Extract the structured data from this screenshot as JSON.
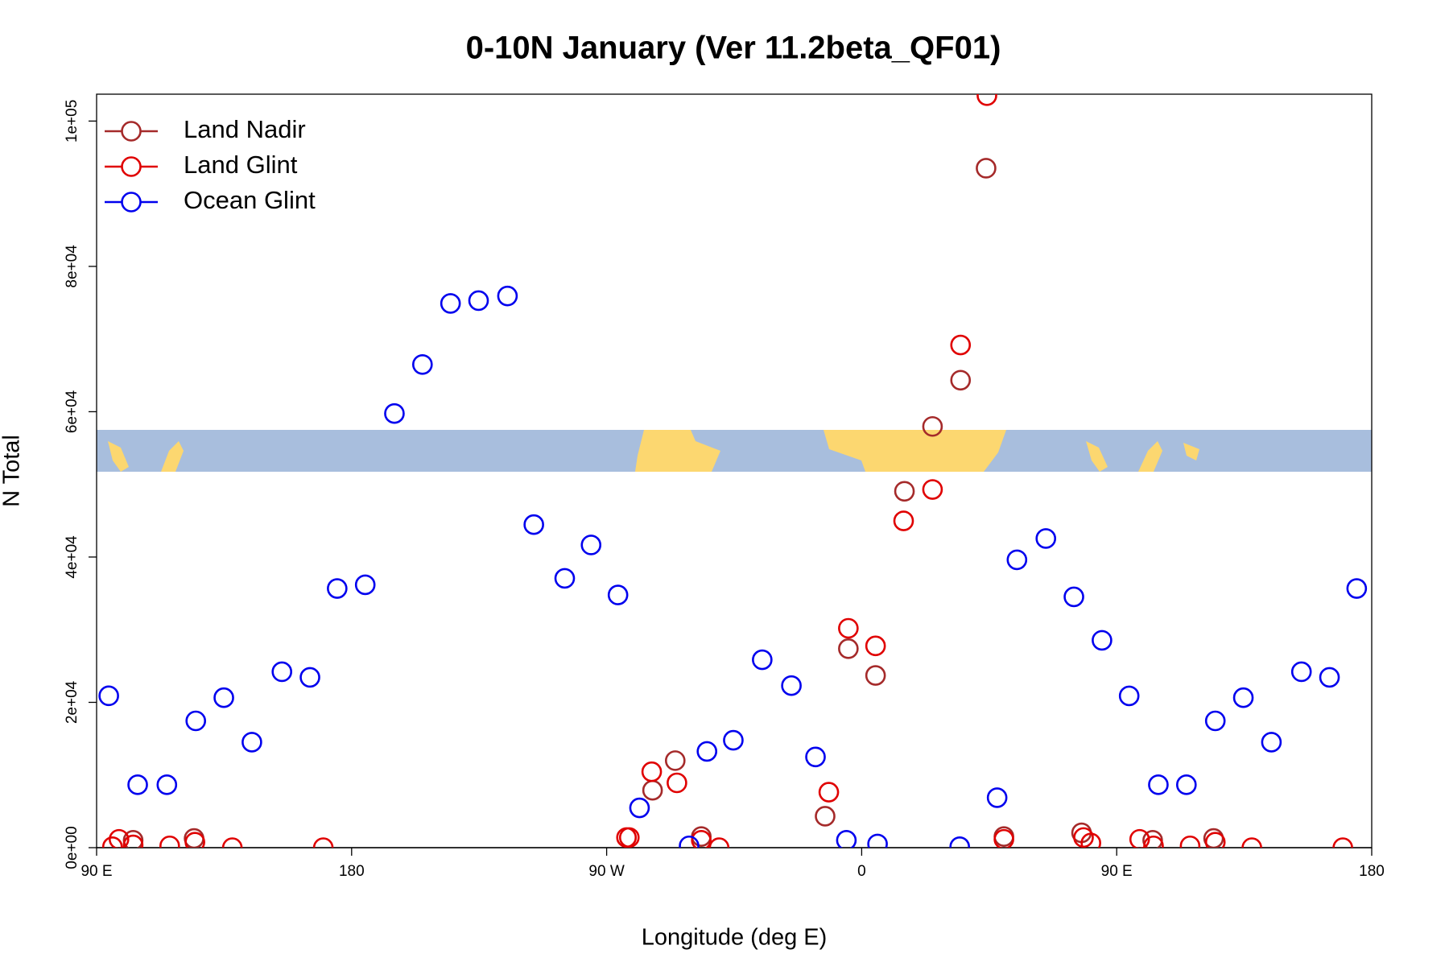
{
  "chart_data": {
    "type": "scatter",
    "title": "0-10N January (Ver 11.2beta_QF01)",
    "x_label": "Longitude (deg E)",
    "y_label": "N Total",
    "xlim": [
      90,
      540
    ],
    "ylim": [
      0,
      103700
    ],
    "xticks": [
      {
        "value": 90,
        "label": "90 E"
      },
      180,
      {
        "value": 270,
        "label": "90 W"
      },
      {
        "value": 360,
        "label": "0"
      },
      {
        "value": 450,
        "label": "90 E"
      },
      {
        "value": 540,
        "label": "180"
      }
    ],
    "yticks": [
      {
        "value": 0,
        "label": "0e+00"
      },
      {
        "value": 20000,
        "label": "2e+04"
      },
      {
        "value": 40000,
        "label": "4e+04"
      },
      {
        "value": 60000,
        "label": "6e+04"
      },
      {
        "value": 80000,
        "label": "8e+04"
      },
      {
        "value": 100000,
        "label": "1e+05"
      }
    ],
    "legend": "top-left",
    "series": [
      {
        "name": "Land Nadir",
        "color": "#a52a2a",
        "x": [
          102.9,
          124.4,
          303.4,
          286.2,
          294.2,
          347.1,
          355.3,
          364.9,
          375.1,
          385.0,
          394.9,
          403.9,
          410.2,
          437.6,
          462.7,
          484.2
        ],
        "values": [
          1020,
          1270,
          1530,
          7900,
          11980,
          4330,
          27390,
          23700,
          49050,
          57970,
          64340,
          93510,
          1530,
          2040,
          1020,
          1270
        ]
      },
      {
        "name": "Land Glint",
        "color": "#e00000",
        "x": [
          95.6,
          97.9,
          102.9,
          115.8,
          124.7,
          137.9,
          170.0,
          277.0,
          278.0,
          285.9,
          294.8,
          303.4,
          309.7,
          348.4,
          355.3,
          364.9,
          374.8,
          385.0,
          394.9,
          404.2,
          410.2,
          438.3,
          440.9,
          458.1,
          463.0,
          475.9,
          484.8,
          497.7,
          529.8
        ],
        "values": [
          130,
          1150,
          380,
          250,
          760,
          0,
          0,
          1400,
          1400,
          10450,
          8920,
          1020,
          0,
          7640,
          30190,
          27770,
          44970,
          49300,
          69180,
          103500,
          1150,
          1400,
          640,
          1150,
          250,
          250,
          760,
          0,
          0
        ]
      },
      {
        "name": "Ocean Glint",
        "color": "#0000ee",
        "x": [
          94.3,
          104.5,
          114.8,
          125.0,
          134.9,
          144.8,
          155.4,
          165.3,
          174.9,
          184.8,
          195.1,
          205.0,
          214.9,
          224.8,
          235.0,
          244.3,
          255.2,
          264.5,
          274.0,
          281.6,
          299.1,
          305.4,
          314.7,
          324.9,
          335.2,
          343.7,
          354.6,
          365.6,
          394.6,
          407.8,
          414.8,
          425.0,
          434.9,
          444.8,
          454.4,
          464.7,
          474.6,
          484.8,
          494.7,
          504.6,
          515.2,
          525.1,
          534.7
        ],
        "values": [
          20900,
          8660,
          8660,
          17450,
          20640,
          14520,
          24210,
          23440,
          35670,
          36180,
          59750,
          66500,
          74900,
          75290,
          75930,
          44460,
          37070,
          41660,
          34780,
          5480,
          250,
          13250,
          14780,
          25860,
          22300,
          12490,
          1020,
          510,
          130,
          6880,
          39620,
          42550,
          34520,
          28540,
          20890,
          8660,
          8660,
          17450,
          20640,
          14520,
          24210,
          23440,
          35670
        ]
      }
    ]
  }
}
